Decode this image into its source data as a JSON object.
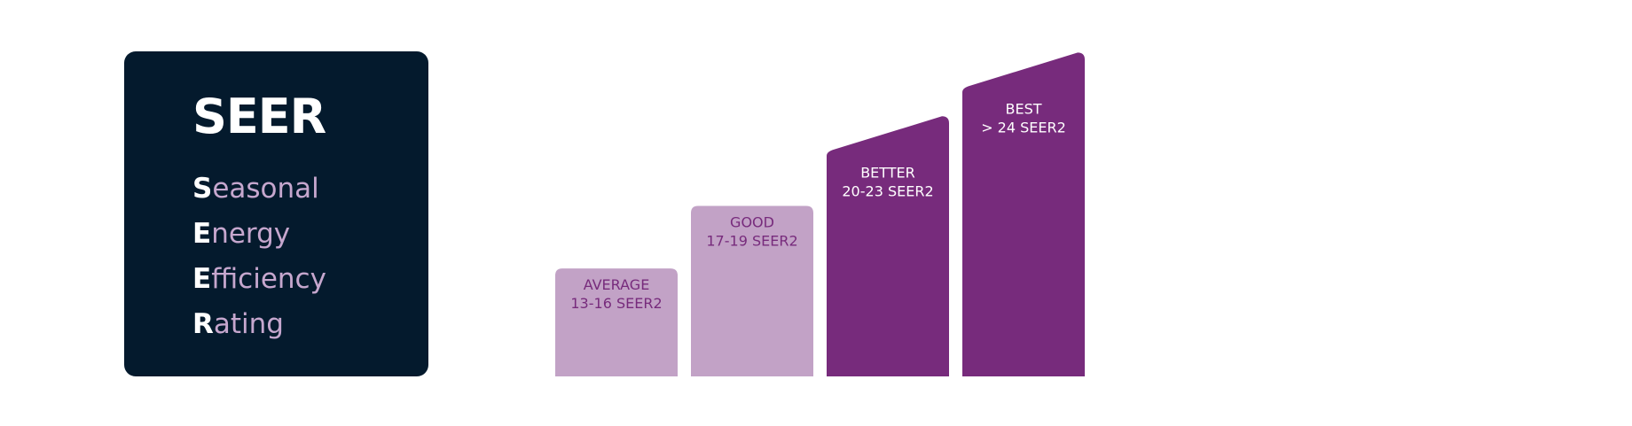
{
  "card": {
    "title": "SEER",
    "rows": [
      {
        "initial": "S",
        "rest": "easonal"
      },
      {
        "initial": "E",
        "rest": "nergy"
      },
      {
        "initial": "E",
        "rest": "fficiency"
      },
      {
        "initial": "R",
        "rest": "ating"
      }
    ],
    "background": "#041a2d",
    "title_color": "#ffffff",
    "initial_color": "#ffffff",
    "rest_color": "#c6a7ce"
  },
  "chart_data": {
    "type": "bar",
    "title": "",
    "xlabel": "",
    "ylabel": "",
    "grid": false,
    "categories": [
      "AVERAGE",
      "GOOD",
      "BETTER",
      "BEST"
    ],
    "ranges": [
      "13-16 SEER2",
      "17-19 SEER2",
      "20-23 SEER2",
      "> 24 SEER2"
    ],
    "range_values": [
      [
        13,
        16
      ],
      [
        17,
        19
      ],
      [
        20,
        23
      ],
      [
        24,
        24
      ]
    ],
    "values": [
      1.0,
      1.58,
      2.41,
      3.0
    ],
    "value_scale": "relative height (AVERAGE = 1)",
    "sloped_top": [
      false,
      false,
      true,
      true
    ],
    "ylim": [
      0,
      3.2
    ],
    "colors": [
      "#c2a2c6",
      "#c2a2c6",
      "#772b7c",
      "#772b7c"
    ],
    "label_colors": [
      "#772b7c",
      "#772b7c",
      "#ffffff",
      "#ffffff"
    ]
  }
}
